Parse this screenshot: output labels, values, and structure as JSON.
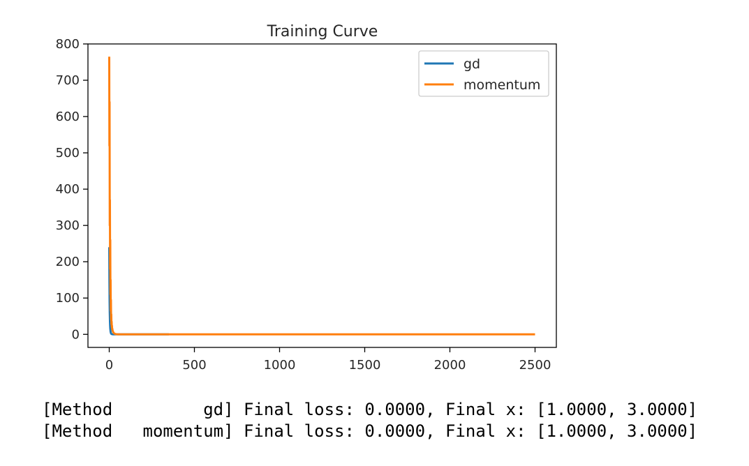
{
  "chart_data": {
    "type": "line",
    "title": "Training Curve",
    "xlabel": "",
    "ylabel": "",
    "xlim": [
      -125,
      2625
    ],
    "ylim": [
      -36,
      800
    ],
    "xticks": [
      0,
      500,
      1000,
      1500,
      2000,
      2500
    ],
    "yticks": [
      0,
      100,
      200,
      300,
      400,
      500,
      600,
      700,
      800
    ],
    "xtick_labels": [
      "0",
      "500",
      "1000",
      "1500",
      "2000",
      "2500"
    ],
    "ytick_labels": [
      "0",
      "100",
      "200",
      "300",
      "400",
      "500",
      "600",
      "700",
      "800"
    ],
    "grid": false,
    "legend_position": "top-right",
    "series": [
      {
        "name": "gd",
        "color": "#1f77b4",
        "x": [
          0,
          1,
          2,
          3,
          4,
          5,
          6,
          8,
          10,
          12,
          15,
          20,
          25,
          30,
          40,
          50,
          60,
          80,
          100,
          150,
          200,
          250,
          300,
          350
        ],
        "y": [
          240,
          150,
          95,
          60,
          38,
          25,
          16,
          7,
          3.2,
          1.5,
          0.6,
          0.15,
          0.04,
          0.01,
          0,
          0,
          0,
          0,
          0,
          0,
          0,
          0,
          0,
          0
        ]
      },
      {
        "name": "momentum",
        "color": "#ff7f0e",
        "x": [
          0,
          1,
          2,
          3,
          4,
          5,
          6,
          7,
          8,
          9,
          10,
          11,
          12,
          13,
          14,
          15,
          16,
          17,
          18,
          20,
          22,
          24,
          26,
          28,
          30,
          35,
          40,
          45,
          50,
          60,
          80,
          100,
          150,
          200,
          300,
          500,
          1000,
          1500,
          2000,
          2500
        ],
        "y": [
          765,
          520,
          640,
          300,
          370,
          180,
          260,
          110,
          150,
          65,
          95,
          40,
          55,
          28,
          35,
          20,
          24,
          14,
          16,
          10,
          7.5,
          5.5,
          4,
          3,
          2.2,
          1.2,
          0.6,
          0.3,
          0.15,
          0.05,
          0,
          0,
          0,
          0,
          0,
          0,
          0,
          0,
          0,
          0
        ]
      }
    ]
  },
  "output": {
    "lines": [
      "[Method         gd] Final loss: 0.0000, Final x: [1.0000, 3.0000]",
      "[Method   momentum] Final loss: 0.0000, Final x: [1.0000, 3.0000]"
    ]
  }
}
